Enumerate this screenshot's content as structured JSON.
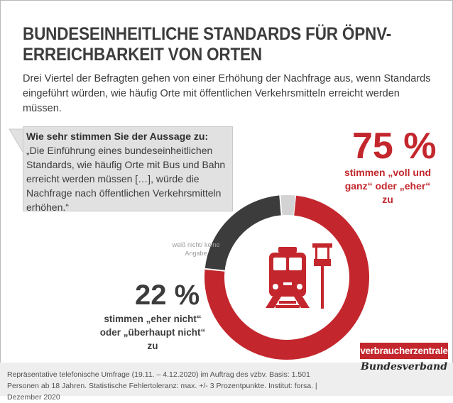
{
  "title": "BUNDESEINHEITLICHE STANDARDS FÜR ÖPNV-ERREICHBARKEIT VON ORTEN",
  "subtitle": "Drei Viertel der Befragten gehen von einer Erhöhung der Nachfrage aus, wenn Standards eingeführt würden, wie häufig Orte mit öffentlichen Verkehrsmitteln erreicht werden müssen.",
  "quote": {
    "question": "Wie sehr stimmen Sie der Aussage zu:",
    "text": "„Die Einführung eines bundeseinheitlichen Standards, wie häufig Orte mit Bus und Bahn erreicht werden müssen […], würde die Nachfrage nach öffentlichen Verkehrsmitteln erhöhen.“"
  },
  "chart_data": {
    "type": "pie",
    "donut": true,
    "slices": [
      {
        "label_pct": "75 %",
        "label": "stimmen „voll und ganz“ oder „eher“ zu",
        "value": 75,
        "color": "#c3272d"
      },
      {
        "label_pct": "22 %",
        "label": "stimmen „eher nicht“ oder „überhaupt nicht“ zu",
        "value": 22,
        "color": "#3c3c3c"
      },
      {
        "label_pct": "",
        "label": "weiß nicht/ keine Angabe",
        "value": 3,
        "color": "#d3d3d3"
      }
    ],
    "center_icon": "train-icon"
  },
  "footer": "Repräsentative telefonische Umfrage (19.11. – 4.12.2020) im Auftrag des vzbv. Basis: 1.501 Personen ab 18 Jahren. Statistische Fehlertoleranz: max. +/- 3 Prozentpunkte. Institut: forsa. | Dezember 2020",
  "logo": {
    "name": "verbraucherzentrale",
    "sub": "Bundesverband"
  },
  "colors": {
    "accent": "#c3272d",
    "dark": "#3c3c3c",
    "light": "#d3d3d3",
    "footer_bg": "#eeeeee"
  }
}
